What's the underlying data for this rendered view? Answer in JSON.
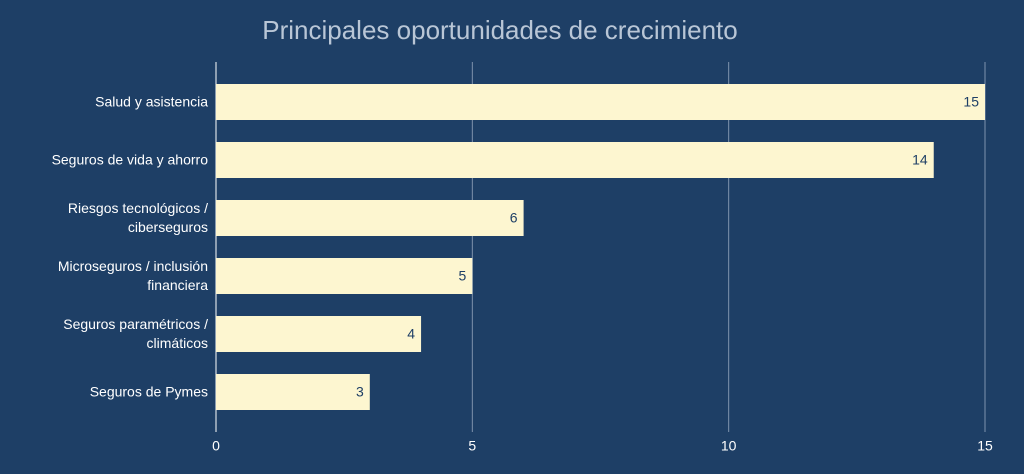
{
  "chart_data": {
    "type": "bar",
    "orientation": "horizontal",
    "title": "Principales oportunidades de crecimiento",
    "categories": [
      "Salud y asistencia",
      "Seguros de vida y ahorro",
      "Riesgos tecnológicos / ciberseguros",
      "Microseguros / inclusión financiera",
      "Seguros paramétricos / climáticos",
      "Seguros de Pymes"
    ],
    "values": [
      15,
      14,
      6,
      5,
      4,
      3
    ],
    "color": "#fdf6d0",
    "xlim": [
      0,
      15
    ],
    "xticks": [
      0,
      5,
      10,
      15
    ],
    "grid": true
  }
}
